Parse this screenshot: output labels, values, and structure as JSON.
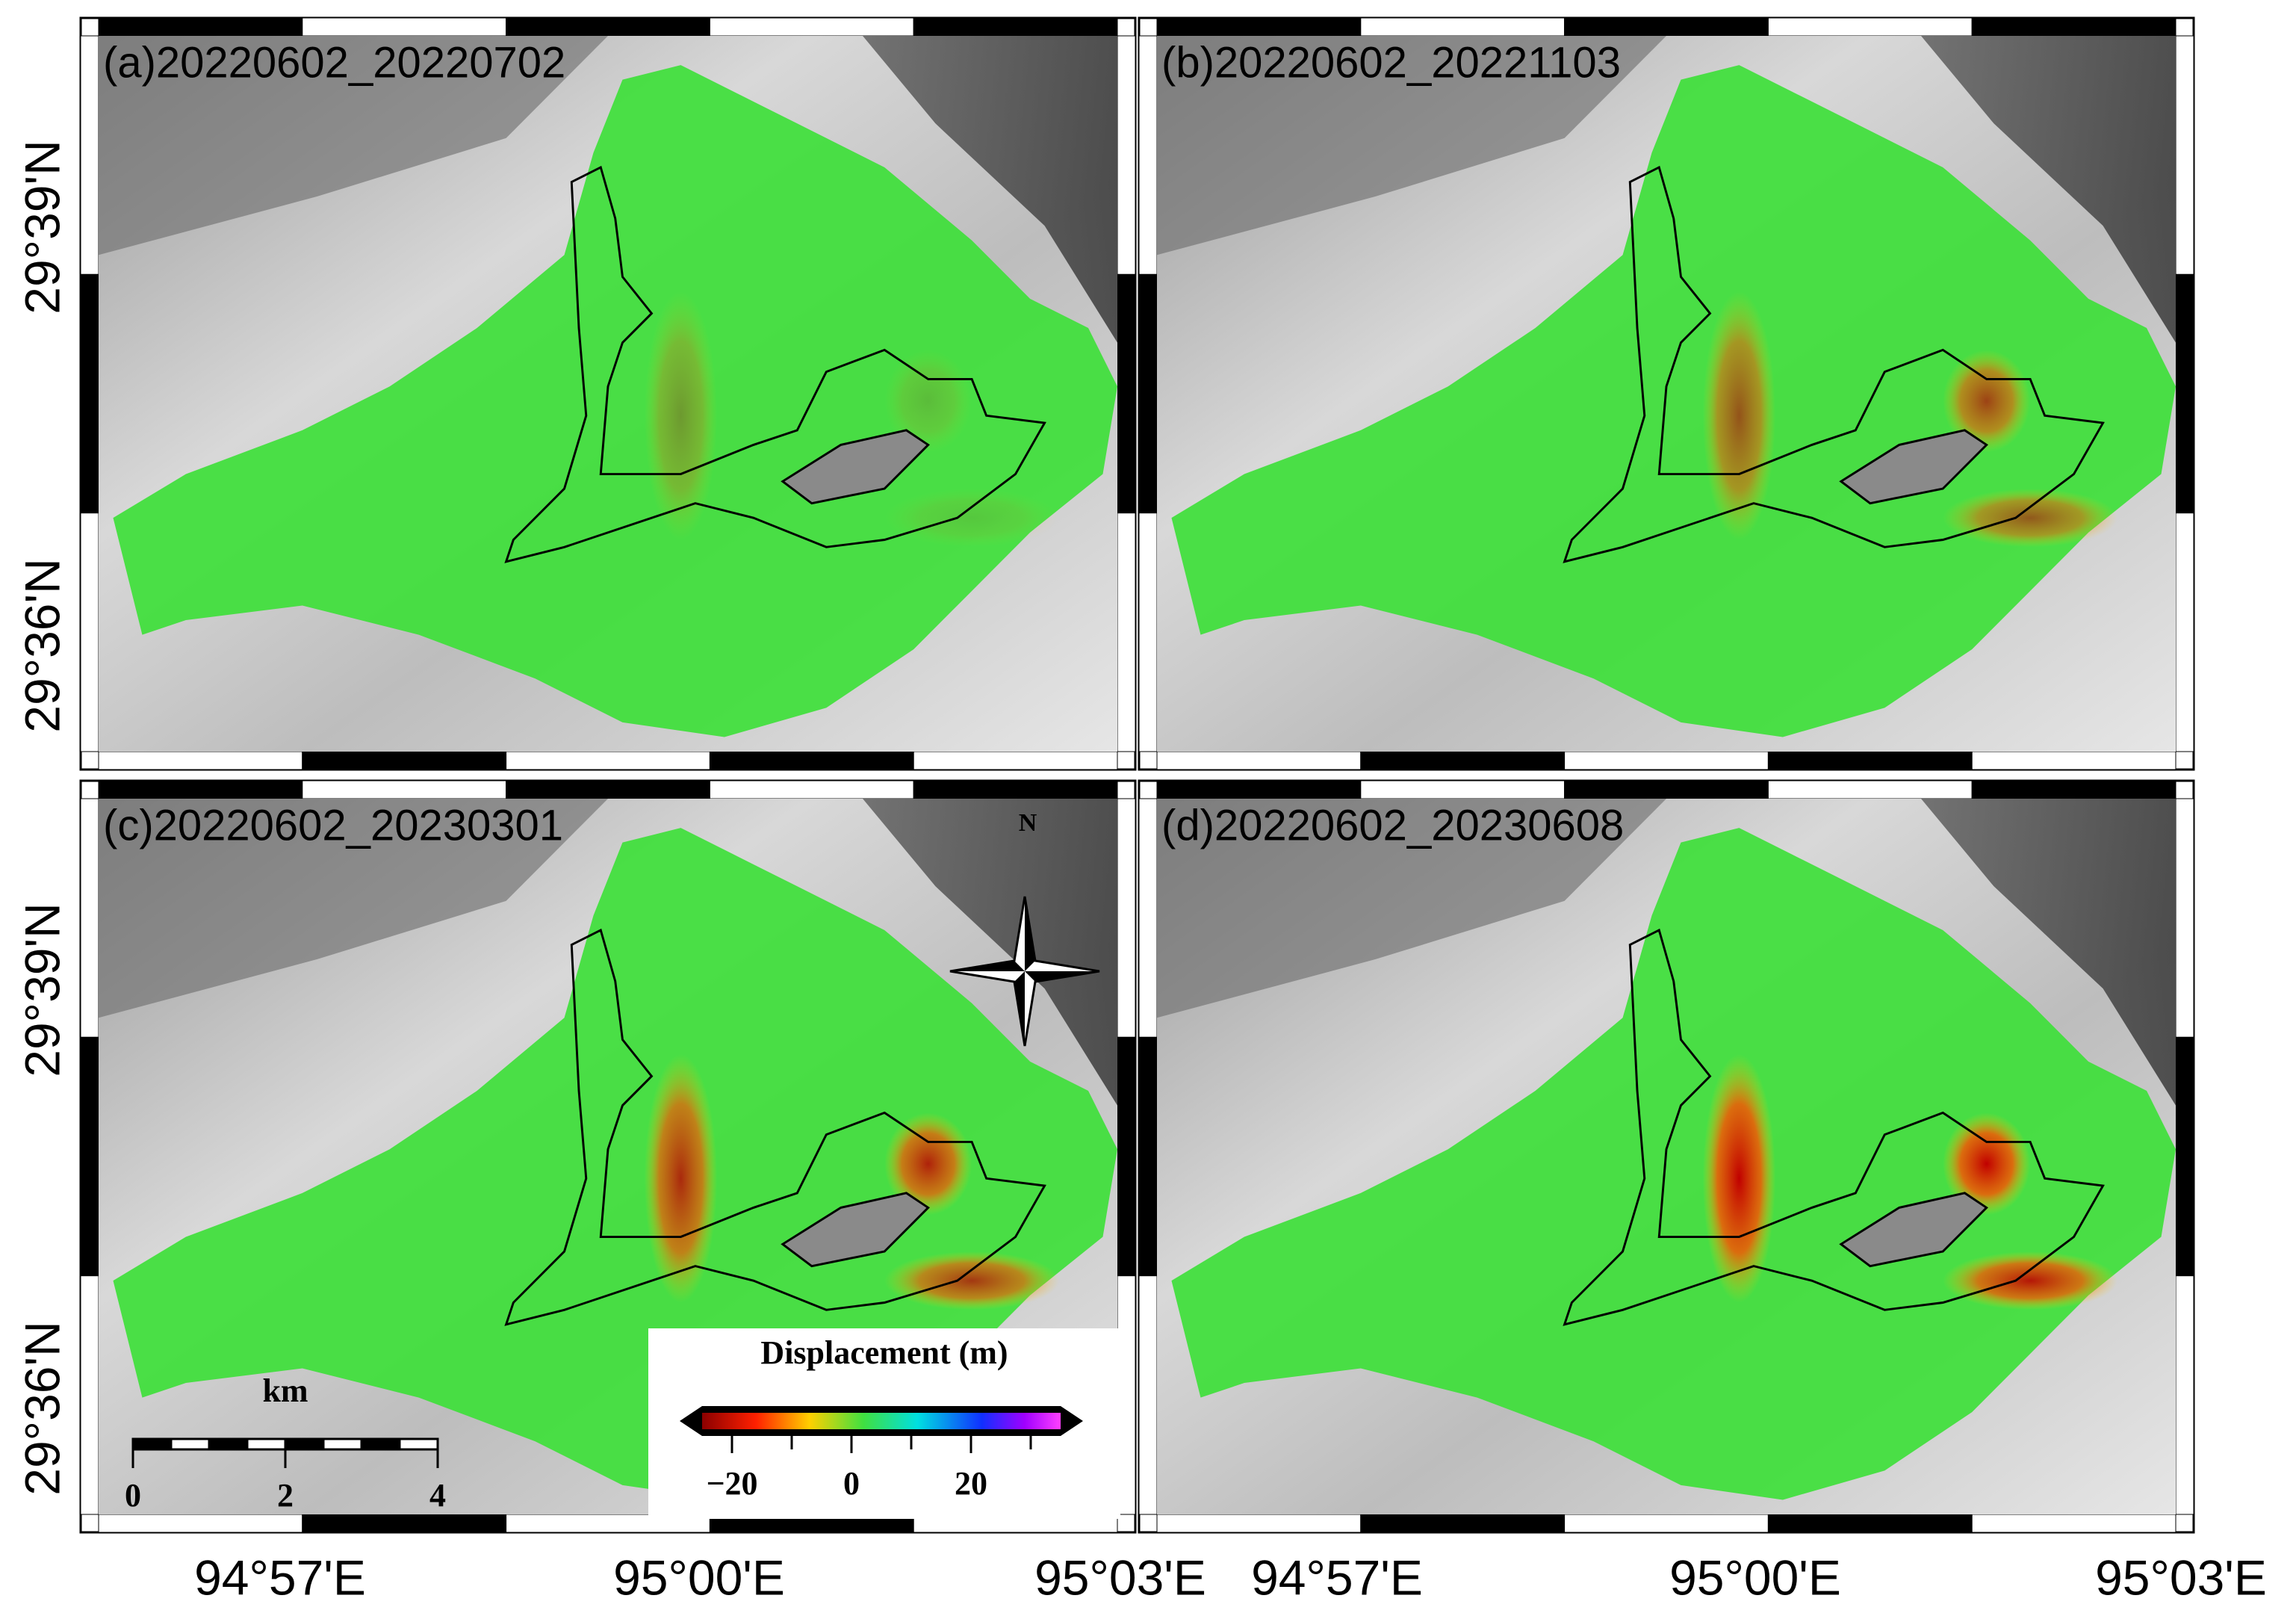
{
  "panels": [
    {
      "label": "(a)20220602_20220702"
    },
    {
      "label": "(b)20220602_20221103"
    },
    {
      "label": "(c)20220602_20230301"
    },
    {
      "label": "(d)20220602_20230608"
    }
  ],
  "lat_labels": [
    "29°39'N",
    "29°36'N"
  ],
  "lon_labels": [
    "94°57'E",
    "95°00'E",
    "95°03'E"
  ],
  "north": "N",
  "scale_bar": {
    "unit": "km",
    "ticks": [
      0,
      2,
      4
    ]
  },
  "legend": {
    "title": "Displacement (m)",
    "lim": [
      -25,
      35
    ],
    "ticks": [
      {
        "value": -20,
        "label": "−20"
      },
      0,
      20
    ]
  }
}
